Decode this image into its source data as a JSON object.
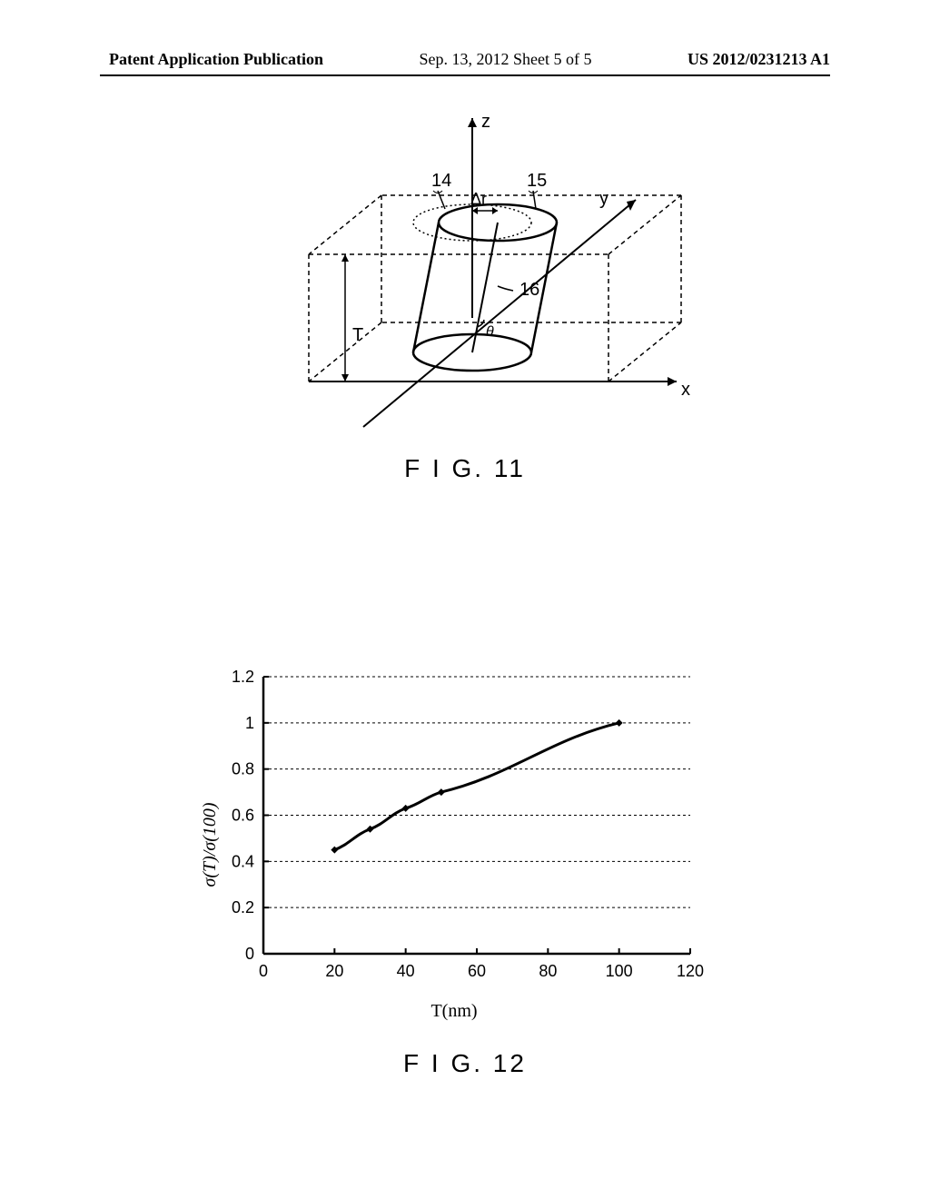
{
  "header": {
    "left": "Patent Application Publication",
    "center": "Sep. 13, 2012  Sheet 5 of 5",
    "right": "US 2012/0231213 A1"
  },
  "fig11": {
    "caption": "F I G. 11",
    "labels": {
      "z_axis": "z",
      "x_axis": "x",
      "y_axis": "y",
      "delta_r": "Δr",
      "theta": "θ",
      "T": "T",
      "ref14": "14",
      "ref15": "15",
      "ref16": "16"
    },
    "colors": {
      "line": "#000000",
      "dashed": "#000000"
    }
  },
  "fig12": {
    "caption": "F I G. 12",
    "type": "line",
    "xlabel": "T(nm)",
    "ylabel": "σ(T)/σ(100)",
    "xlim": [
      0,
      120
    ],
    "ylim": [
      0,
      1.2
    ],
    "xticks": [
      0,
      20,
      40,
      60,
      80,
      100,
      120
    ],
    "yticks": [
      0,
      0.2,
      0.4,
      0.6,
      0.8,
      1,
      1.2
    ],
    "data_points": [
      {
        "x": 20,
        "y": 0.45
      },
      {
        "x": 30,
        "y": 0.54
      },
      {
        "x": 40,
        "y": 0.63
      },
      {
        "x": 50,
        "y": 0.7
      },
      {
        "x": 100,
        "y": 1.0
      }
    ],
    "colors": {
      "line": "#000000",
      "marker": "#000000",
      "grid": "#000000",
      "axis": "#000000",
      "background": "#ffffff"
    },
    "line_width": 3,
    "marker_size": 8,
    "label_fontsize": 20,
    "tick_fontsize": 18
  }
}
